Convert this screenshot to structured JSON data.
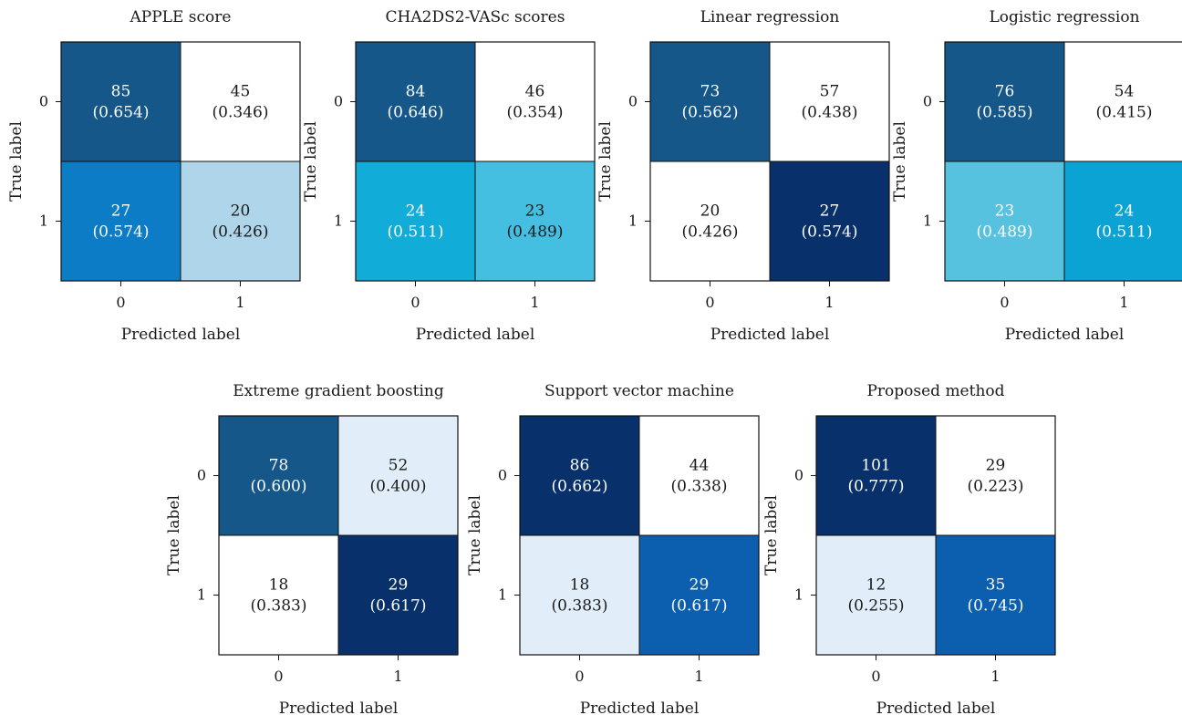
{
  "chart_data": [
    {
      "type": "heatmap",
      "title": "APPLE score",
      "xlabel": "Predicted label",
      "ylabel": "True label",
      "x_ticks": [
        "0",
        "1"
      ],
      "y_ticks": [
        "0",
        "1"
      ],
      "counts": [
        [
          85,
          45
        ],
        [
          27,
          20
        ]
      ],
      "fractions": [
        [
          "(0.654)",
          "(0.346)"
        ],
        [
          "(0.574)",
          "(0.426)"
        ]
      ],
      "cell_colors": [
        [
          "#16578a",
          "#ffffff"
        ],
        [
          "#0c7cc6",
          "#aed5e9"
        ]
      ],
      "text_colors": [
        [
          "#ffffff",
          "#1a1a1a"
        ],
        [
          "#ffffff",
          "#1a1a1a"
        ]
      ]
    },
    {
      "type": "heatmap",
      "title": "CHA2DS2-VASc scores",
      "xlabel": "Predicted label",
      "ylabel": "True label",
      "x_ticks": [
        "0",
        "1"
      ],
      "y_ticks": [
        "0",
        "1"
      ],
      "counts": [
        [
          84,
          46
        ],
        [
          24,
          23
        ]
      ],
      "fractions": [
        [
          "(0.646)",
          "(0.354)"
        ],
        [
          "(0.511)",
          "(0.489)"
        ]
      ],
      "cell_colors": [
        [
          "#16578a",
          "#ffffff"
        ],
        [
          "#12acd9",
          "#44bfe1"
        ]
      ],
      "text_colors": [
        [
          "#ffffff",
          "#1a1a1a"
        ],
        [
          "#ffffff",
          "#1a1a1a"
        ]
      ]
    },
    {
      "type": "heatmap",
      "title": "Linear regression",
      "xlabel": "Predicted label",
      "ylabel": "True label",
      "x_ticks": [
        "0",
        "1"
      ],
      "y_ticks": [
        "0",
        "1"
      ],
      "counts": [
        [
          73,
          57
        ],
        [
          20,
          27
        ]
      ],
      "fractions": [
        [
          "(0.562)",
          "(0.438)"
        ],
        [
          "(0.426)",
          "(0.574)"
        ]
      ],
      "cell_colors": [
        [
          "#16578a",
          "#ffffff"
        ],
        [
          "#ffffff",
          "#08306b"
        ]
      ],
      "text_colors": [
        [
          "#ffffff",
          "#1a1a1a"
        ],
        [
          "#1a1a1a",
          "#ffffff"
        ]
      ]
    },
    {
      "type": "heatmap",
      "title": "Logistic regression",
      "xlabel": "Predicted label",
      "ylabel": "True label",
      "x_ticks": [
        "0",
        "1"
      ],
      "y_ticks": [
        "0",
        "1"
      ],
      "counts": [
        [
          76,
          54
        ],
        [
          23,
          24
        ]
      ],
      "fractions": [
        [
          "(0.585)",
          "(0.415)"
        ],
        [
          "(0.489)",
          "(0.511)"
        ]
      ],
      "cell_colors": [
        [
          "#16578a",
          "#ffffff"
        ],
        [
          "#57c2df",
          "#0aa3d4"
        ]
      ],
      "text_colors": [
        [
          "#ffffff",
          "#1a1a1a"
        ],
        [
          "#ffffff",
          "#ffffff"
        ]
      ]
    },
    {
      "type": "heatmap",
      "title": "Extreme gradient boosting",
      "xlabel": "Predicted label",
      "ylabel": "True label",
      "x_ticks": [
        "0",
        "1"
      ],
      "y_ticks": [
        "0",
        "1"
      ],
      "counts": [
        [
          78,
          52
        ],
        [
          18,
          29
        ]
      ],
      "fractions": [
        [
          "(0.600)",
          "(0.400)"
        ],
        [
          "(0.383)",
          "(0.617)"
        ]
      ],
      "cell_colors": [
        [
          "#16578a",
          "#e1edf8"
        ],
        [
          "#ffffff",
          "#08306b"
        ]
      ],
      "text_colors": [
        [
          "#ffffff",
          "#1a1a1a"
        ],
        [
          "#1a1a1a",
          "#ffffff"
        ]
      ]
    },
    {
      "type": "heatmap",
      "title": "Support vector machine",
      "xlabel": "Predicted label",
      "ylabel": "True label",
      "x_ticks": [
        "0",
        "1"
      ],
      "y_ticks": [
        "0",
        "1"
      ],
      "counts": [
        [
          86,
          44
        ],
        [
          18,
          29
        ]
      ],
      "fractions": [
        [
          "(0.662)",
          "(0.338)"
        ],
        [
          "(0.383)",
          "(0.617)"
        ]
      ],
      "cell_colors": [
        [
          "#08306b",
          "#ffffff"
        ],
        [
          "#e1edf8",
          "#0c5fae"
        ]
      ],
      "text_colors": [
        [
          "#ffffff",
          "#1a1a1a"
        ],
        [
          "#1a1a1a",
          "#ffffff"
        ]
      ]
    },
    {
      "type": "heatmap",
      "title": "Proposed method",
      "xlabel": "Predicted label",
      "ylabel": "True label",
      "x_ticks": [
        "0",
        "1"
      ],
      "y_ticks": [
        "0",
        "1"
      ],
      "counts": [
        [
          101,
          29
        ],
        [
          12,
          35
        ]
      ],
      "fractions": [
        [
          "(0.777)",
          "(0.223)"
        ],
        [
          "(0.255)",
          "(0.745)"
        ]
      ],
      "cell_colors": [
        [
          "#08306b",
          "#ffffff"
        ],
        [
          "#e1edf8",
          "#0c5fae"
        ]
      ],
      "text_colors": [
        [
          "#ffffff",
          "#1a1a1a"
        ],
        [
          "#1a1a1a",
          "#ffffff"
        ]
      ]
    }
  ]
}
